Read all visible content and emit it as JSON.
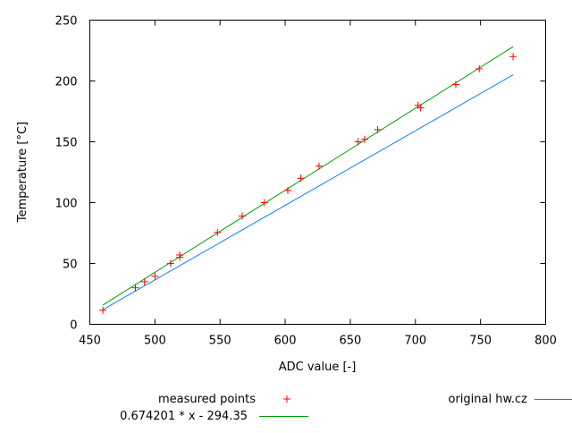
{
  "chart_data": {
    "type": "scatter",
    "title": "",
    "xlabel": "ADC value [-]",
    "ylabel": "Temperature [°C]",
    "xlim": [
      450,
      800
    ],
    "ylim": [
      0,
      250
    ],
    "xticks": [
      450,
      500,
      550,
      600,
      650,
      700,
      750,
      800
    ],
    "yticks": [
      0,
      50,
      100,
      150,
      200,
      250
    ],
    "grid": false,
    "legend_placement": "bottom",
    "series": [
      {
        "name": "measured points",
        "kind": "points",
        "marker": "plus",
        "color": "#ff0000",
        "points": [
          [
            460,
            11.5
          ],
          [
            485,
            30
          ],
          [
            492,
            35
          ],
          [
            500,
            39.5
          ],
          [
            512,
            50
          ],
          [
            519,
            57
          ],
          [
            519,
            55
          ],
          [
            548,
            75.5
          ],
          [
            567,
            89
          ],
          [
            584,
            100
          ],
          [
            602,
            110
          ],
          [
            612,
            120
          ],
          [
            626,
            130
          ],
          [
            656,
            150
          ],
          [
            661,
            152
          ],
          [
            671,
            160
          ],
          [
            702,
            180
          ],
          [
            704,
            178
          ],
          [
            731,
            197
          ],
          [
            749,
            210
          ],
          [
            775,
            220
          ]
        ]
      },
      {
        "name": "0.674201 * x - 294.35",
        "kind": "function",
        "slope": 0.674201,
        "intercept": -294.35,
        "x_range": [
          460,
          775
        ],
        "color": "#00a000"
      },
      {
        "name": "original hw.cz",
        "kind": "line",
        "color": "#0080ff",
        "points": [
          [
            460,
            12
          ],
          [
            775,
            205
          ]
        ]
      }
    ]
  }
}
